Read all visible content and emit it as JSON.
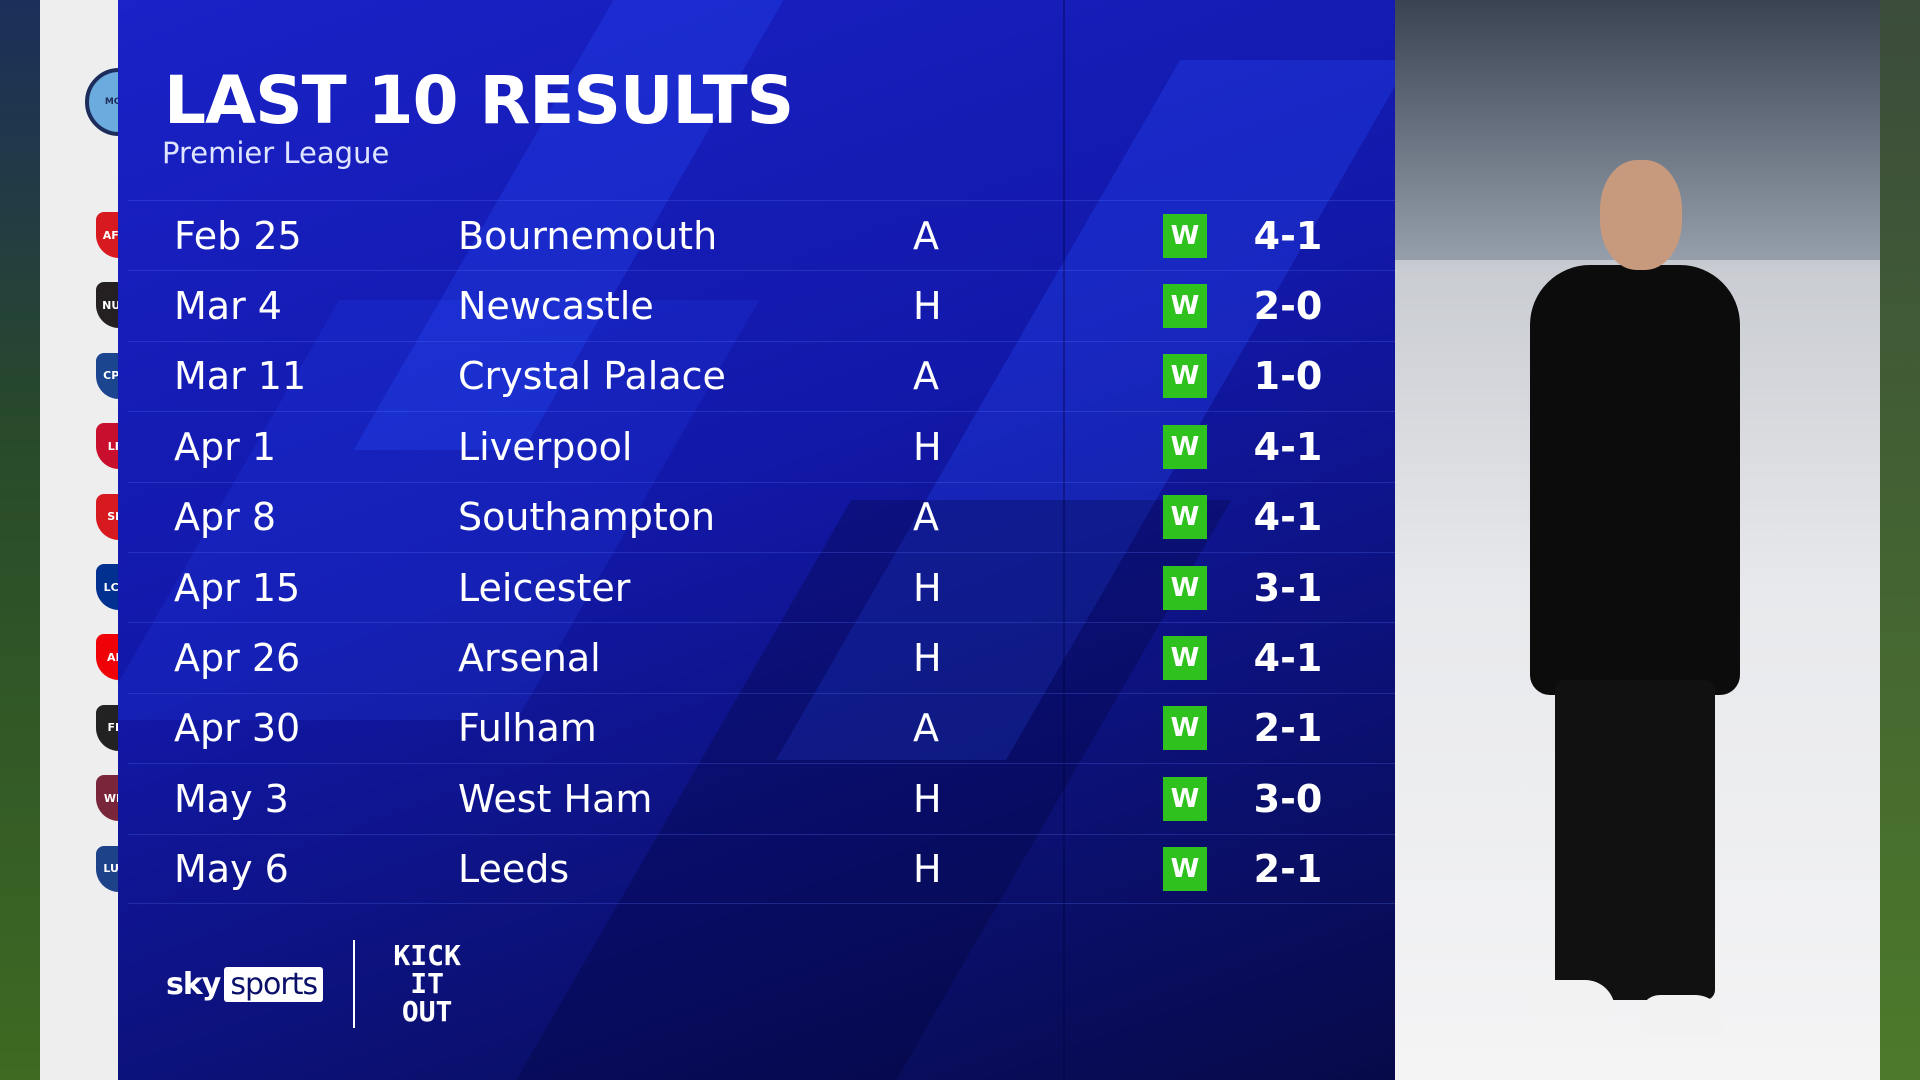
{
  "header": {
    "title": "LAST 10 RESULTS",
    "subtitle": "Premier League"
  },
  "team": {
    "name": "Manchester City",
    "crest_text": "MCFC",
    "crest_color": "#6cabdd"
  },
  "results": [
    {
      "date": "Feb 25",
      "opponent": "Bournemouth",
      "venue": "A",
      "result": "W",
      "score": "4-1",
      "crest_color": "#d71920",
      "crest_text": "AFCB"
    },
    {
      "date": "Mar 4",
      "opponent": "Newcastle",
      "venue": "H",
      "result": "W",
      "score": "2-0",
      "crest_color": "#241f20",
      "crest_text": "NUFC"
    },
    {
      "date": "Mar 11",
      "opponent": "Crystal Palace",
      "venue": "A",
      "result": "W",
      "score": "1-0",
      "crest_color": "#1b458f",
      "crest_text": "CPFC"
    },
    {
      "date": "Apr 1",
      "opponent": "Liverpool",
      "venue": "H",
      "result": "W",
      "score": "4-1",
      "crest_color": "#c8102e",
      "crest_text": "LFC"
    },
    {
      "date": "Apr 8",
      "opponent": "Southampton",
      "venue": "A",
      "result": "W",
      "score": "4-1",
      "crest_color": "#d71920",
      "crest_text": "SFC"
    },
    {
      "date": "Apr 15",
      "opponent": "Leicester",
      "venue": "H",
      "result": "W",
      "score": "3-1",
      "crest_color": "#003090",
      "crest_text": "LCFC"
    },
    {
      "date": "Apr 26",
      "opponent": "Arsenal",
      "venue": "H",
      "result": "W",
      "score": "4-1",
      "crest_color": "#ef0107",
      "crest_text": "AFC"
    },
    {
      "date": "Apr 30",
      "opponent": "Fulham",
      "venue": "A",
      "result": "W",
      "score": "2-1",
      "crest_color": "#222222",
      "crest_text": "FFC"
    },
    {
      "date": "May 3",
      "opponent": "West Ham",
      "venue": "H",
      "result": "W",
      "score": "3-0",
      "crest_color": "#7a263a",
      "crest_text": "WHU"
    },
    {
      "date": "May 6",
      "opponent": "Leeds",
      "venue": "H",
      "result": "W",
      "score": "2-1",
      "crest_color": "#1d428a",
      "crest_text": "LUFC"
    }
  ],
  "colors": {
    "win": "#2fc21f",
    "panel": "#1218a8"
  },
  "branding": {
    "sky": "sky",
    "sports": "sports",
    "kick_it_out": "KICK IT OUT"
  }
}
